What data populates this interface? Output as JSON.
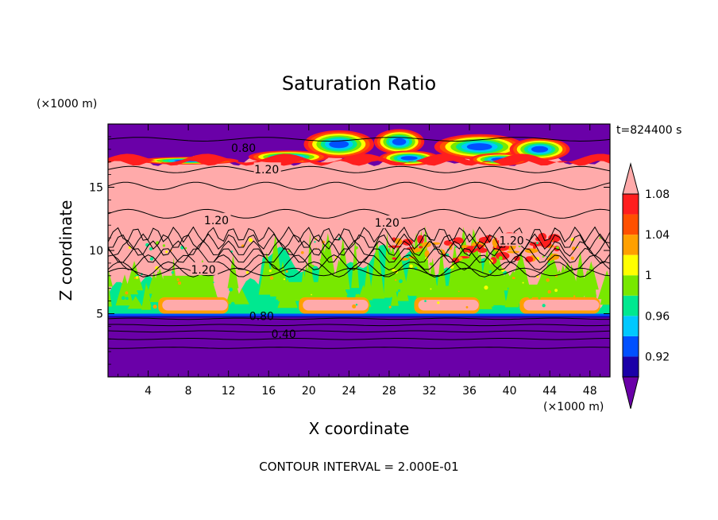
{
  "chart_data": {
    "type": "heatmap",
    "title": "Saturation Ratio",
    "xlabel": "X coordinate",
    "ylabel": "Z coordinate",
    "x_unit": "(×1000 m)",
    "y_unit": "(×1000 m)",
    "time_label": "t=824400 s",
    "footer": "CONTOUR INTERVAL = 2.000E-01",
    "xlim": [
      0,
      50
    ],
    "ylim": [
      0,
      20
    ],
    "x_ticks": [
      4,
      8,
      12,
      16,
      20,
      24,
      28,
      32,
      36,
      40,
      44,
      48
    ],
    "x_tick_labels": [
      "4",
      "8",
      "12",
      "16",
      "20",
      "24",
      "28",
      "32",
      "36",
      "40",
      "44",
      "48"
    ],
    "y_ticks": [
      5,
      10,
      15
    ],
    "y_tick_labels": [
      "5",
      "10",
      "15"
    ],
    "colorbar": {
      "levels": [
        0.9,
        0.92,
        0.94,
        0.96,
        0.98,
        1.0,
        1.02,
        1.04,
        1.06,
        1.08,
        1.1
      ],
      "colors": [
        "#6a00a8",
        "#1a00a8",
        "#0050ff",
        "#00c8ff",
        "#00e890",
        "#78e800",
        "#ffff00",
        "#ffa000",
        "#ff5000",
        "#ff1e1e",
        "#ffaaaa"
      ],
      "tick_labels": [
        "0.92",
        "0.96",
        "1",
        "1.04",
        "1.08"
      ],
      "tick_values": [
        0.92,
        0.96,
        1.0,
        1.04,
        1.08
      ]
    },
    "contour_labels": [
      {
        "text": "0.80",
        "x": 13.5,
        "z": 18.1
      },
      {
        "text": "1.20",
        "x": 15.8,
        "z": 16.4
      },
      {
        "text": "1.20",
        "x": 10.8,
        "z": 12.4
      },
      {
        "text": "1.20",
        "x": 27.8,
        "z": 12.2
      },
      {
        "text": "1.20",
        "x": 40.2,
        "z": 10.8
      },
      {
        "text": "1.20",
        "x": 9.5,
        "z": 8.5
      },
      {
        "text": "0.80",
        "x": 15.3,
        "z": 4.8
      },
      {
        "text": "0.40",
        "x": 17.5,
        "z": 3.4
      }
    ]
  }
}
